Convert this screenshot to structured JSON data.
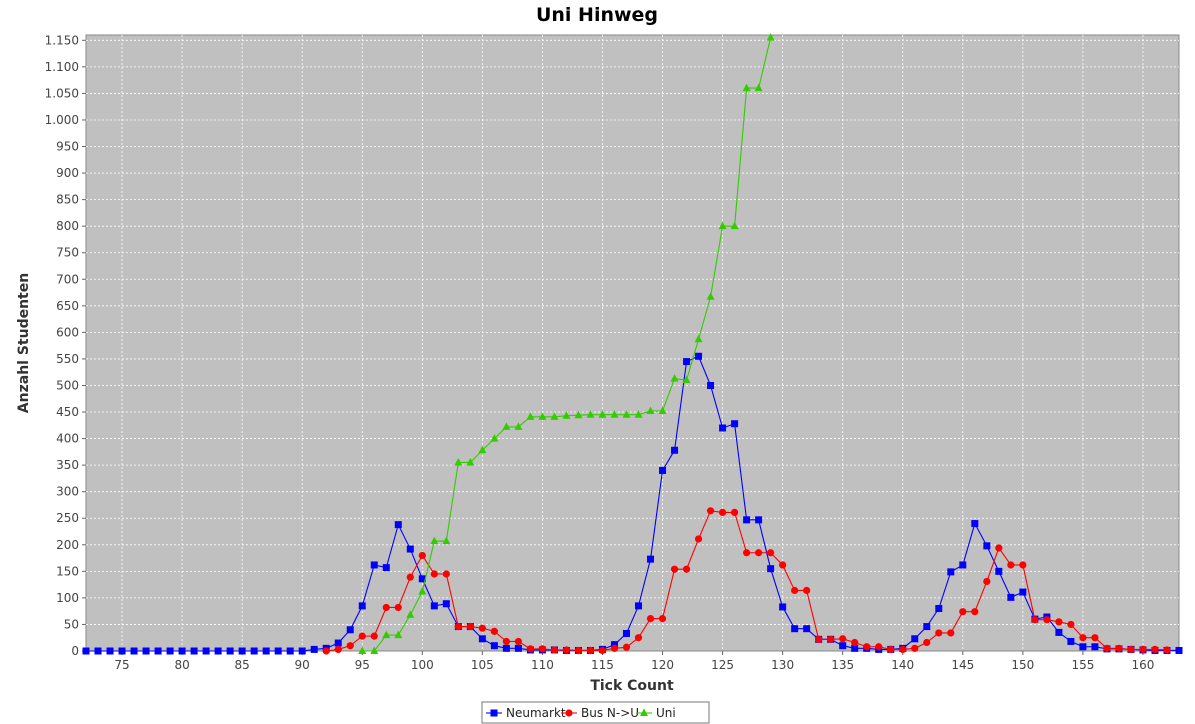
{
  "chart_data": {
    "type": "line",
    "title": "Uni Hinweg",
    "xlabel": "Tick Count",
    "ylabel": "Anzahl Studenten",
    "xlim": [
      72,
      163
    ],
    "ylim": [
      0,
      1160
    ],
    "x_ticks": [
      75,
      80,
      85,
      90,
      95,
      100,
      105,
      110,
      115,
      120,
      125,
      130,
      135,
      140,
      145,
      150,
      155,
      160
    ],
    "x_tick_labels": [
      "75",
      "80",
      "85",
      "90",
      "95",
      "100",
      "105",
      "110",
      "115",
      "120",
      "125",
      "130",
      "135",
      "140",
      "145",
      "150",
      "155",
      "160"
    ],
    "y_ticks": [
      0,
      50,
      100,
      150,
      200,
      250,
      300,
      350,
      400,
      450,
      500,
      550,
      600,
      650,
      700,
      750,
      800,
      850,
      900,
      950,
      1000,
      1050,
      1100,
      1150
    ],
    "y_tick_labels": [
      "0",
      "50",
      "100",
      "150",
      "200",
      "250",
      "300",
      "350",
      "400",
      "450",
      "500",
      "550",
      "600",
      "650",
      "700",
      "750",
      "800",
      "850",
      "900",
      "950",
      "1.000",
      "1.050",
      "1.100",
      "1.150"
    ],
    "grid": true,
    "legend_position": "bottom",
    "plot_background": "#c0c0c0",
    "series": [
      {
        "name": "Neumarkt",
        "color": "#0000ff",
        "marker": "square",
        "points": [
          [
            72,
            0
          ],
          [
            73,
            0
          ],
          [
            74,
            0
          ],
          [
            75,
            0
          ],
          [
            76,
            0
          ],
          [
            77,
            0
          ],
          [
            78,
            0
          ],
          [
            79,
            0
          ],
          [
            80,
            0
          ],
          [
            81,
            0
          ],
          [
            82,
            0
          ],
          [
            83,
            0
          ],
          [
            84,
            0
          ],
          [
            85,
            0
          ],
          [
            86,
            0
          ],
          [
            87,
            0
          ],
          [
            88,
            0
          ],
          [
            89,
            0
          ],
          [
            90,
            0
          ],
          [
            91,
            3
          ],
          [
            92,
            5
          ],
          [
            93,
            15
          ],
          [
            94,
            40
          ],
          [
            95,
            85
          ],
          [
            96,
            162
          ],
          [
            97,
            157
          ],
          [
            98,
            238
          ],
          [
            99,
            192
          ],
          [
            100,
            136
          ],
          [
            101,
            85
          ],
          [
            102,
            89
          ],
          [
            103,
            46
          ],
          [
            104,
            46
          ],
          [
            105,
            23
          ],
          [
            106,
            10
          ],
          [
            107,
            5
          ],
          [
            108,
            5
          ],
          [
            109,
            2
          ],
          [
            110,
            2
          ],
          [
            111,
            2
          ],
          [
            112,
            1
          ],
          [
            113,
            1
          ],
          [
            114,
            1
          ],
          [
            115,
            3
          ],
          [
            116,
            12
          ],
          [
            117,
            33
          ],
          [
            118,
            85
          ],
          [
            119,
            173
          ],
          [
            120,
            340
          ],
          [
            121,
            378
          ],
          [
            122,
            545
          ],
          [
            123,
            555
          ],
          [
            124,
            500
          ],
          [
            125,
            420
          ],
          [
            126,
            428
          ],
          [
            127,
            247
          ],
          [
            128,
            247
          ],
          [
            129,
            155
          ],
          [
            130,
            83
          ],
          [
            131,
            42
          ],
          [
            132,
            42
          ],
          [
            133,
            22
          ],
          [
            134,
            22
          ],
          [
            135,
            10
          ],
          [
            136,
            5
          ],
          [
            137,
            5
          ],
          [
            138,
            3
          ],
          [
            139,
            3
          ],
          [
            140,
            5
          ],
          [
            141,
            23
          ],
          [
            142,
            46
          ],
          [
            143,
            80
          ],
          [
            144,
            149
          ],
          [
            145,
            162
          ],
          [
            146,
            240
          ],
          [
            147,
            198
          ],
          [
            148,
            150
          ],
          [
            149,
            101
          ],
          [
            150,
            111
          ],
          [
            151,
            60
          ],
          [
            152,
            64
          ],
          [
            153,
            35
          ],
          [
            154,
            18
          ],
          [
            155,
            8
          ],
          [
            156,
            8
          ],
          [
            157,
            4
          ],
          [
            158,
            4
          ],
          [
            159,
            3
          ],
          [
            160,
            2
          ],
          [
            161,
            1
          ],
          [
            162,
            1
          ],
          [
            163,
            1
          ]
        ]
      },
      {
        "name": "Bus N->U",
        "color": "#ff0000",
        "marker": "circle",
        "points": [
          [
            92,
            0
          ],
          [
            93,
            3
          ],
          [
            94,
            10
          ],
          [
            95,
            28
          ],
          [
            96,
            28
          ],
          [
            97,
            82
          ],
          [
            98,
            82
          ],
          [
            99,
            139
          ],
          [
            100,
            180
          ],
          [
            101,
            145
          ],
          [
            102,
            145
          ],
          [
            103,
            46
          ],
          [
            104,
            46
          ],
          [
            105,
            43
          ],
          [
            106,
            37
          ],
          [
            107,
            18
          ],
          [
            108,
            18
          ],
          [
            109,
            4
          ],
          [
            110,
            4
          ],
          [
            111,
            2
          ],
          [
            112,
            2
          ],
          [
            113,
            1
          ],
          [
            114,
            1
          ],
          [
            115,
            1
          ],
          [
            116,
            5
          ],
          [
            117,
            7
          ],
          [
            118,
            25
          ],
          [
            119,
            61
          ],
          [
            120,
            61
          ],
          [
            121,
            154
          ],
          [
            122,
            154
          ],
          [
            123,
            211
          ],
          [
            124,
            264
          ],
          [
            125,
            261
          ],
          [
            126,
            261
          ],
          [
            127,
            185
          ],
          [
            128,
            185
          ],
          [
            129,
            185
          ],
          [
            130,
            162
          ],
          [
            131,
            114
          ],
          [
            132,
            114
          ],
          [
            133,
            22
          ],
          [
            134,
            22
          ],
          [
            135,
            23
          ],
          [
            136,
            16
          ],
          [
            137,
            8
          ],
          [
            138,
            8
          ],
          [
            139,
            3
          ],
          [
            140,
            3
          ],
          [
            141,
            5
          ],
          [
            142,
            16
          ],
          [
            143,
            34
          ],
          [
            144,
            34
          ],
          [
            145,
            74
          ],
          [
            146,
            74
          ],
          [
            147,
            131
          ],
          [
            148,
            194
          ],
          [
            149,
            162
          ],
          [
            150,
            162
          ],
          [
            151,
            59
          ],
          [
            152,
            59
          ],
          [
            153,
            55
          ],
          [
            154,
            50
          ],
          [
            155,
            25
          ],
          [
            156,
            25
          ],
          [
            157,
            5
          ],
          [
            158,
            5
          ],
          [
            159,
            3
          ],
          [
            160,
            3
          ],
          [
            161,
            3
          ],
          [
            162,
            2
          ]
        ]
      },
      {
        "name": "Uni",
        "color": "#33cc00",
        "marker": "triangle",
        "points": [
          [
            95,
            0
          ],
          [
            96,
            0
          ],
          [
            97,
            30
          ],
          [
            98,
            30
          ],
          [
            99,
            68
          ],
          [
            100,
            112
          ],
          [
            101,
            207
          ],
          [
            102,
            207
          ],
          [
            103,
            355
          ],
          [
            104,
            355
          ],
          [
            105,
            378
          ],
          [
            106,
            400
          ],
          [
            107,
            422
          ],
          [
            108,
            422
          ],
          [
            109,
            441
          ],
          [
            110,
            441
          ],
          [
            111,
            441
          ],
          [
            112,
            443
          ],
          [
            113,
            444
          ],
          [
            114,
            445
          ],
          [
            115,
            445
          ],
          [
            116,
            445
          ],
          [
            117,
            445
          ],
          [
            118,
            445
          ],
          [
            119,
            452
          ],
          [
            120,
            452
          ],
          [
            121,
            513
          ],
          [
            122,
            510
          ],
          [
            123,
            587
          ],
          [
            124,
            667
          ],
          [
            125,
            800
          ],
          [
            126,
            800
          ],
          [
            127,
            1060
          ],
          [
            128,
            1060
          ],
          [
            129,
            1155
          ]
        ]
      }
    ]
  }
}
